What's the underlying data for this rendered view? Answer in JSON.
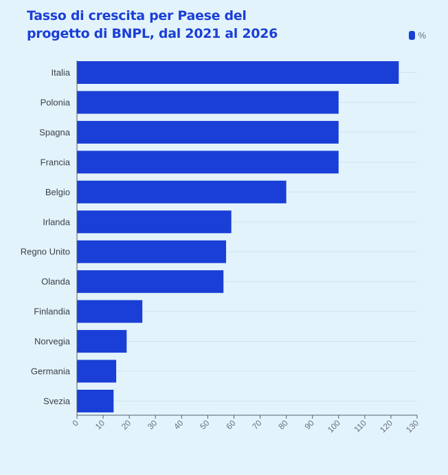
{
  "chart": {
    "title_line1": "Tasso di crescita per Paese del",
    "title_line2": "progetto di BNPL, dal 2021 al 2026",
    "legend_label": "%"
  },
  "colors": {
    "background": "#e3f3fc",
    "bar": "#1a3fd6",
    "title": "#1a3fd6",
    "grid": "#cfe3ee",
    "axis": "#555c66",
    "label": "#3a3f47",
    "tick": "#666e78"
  },
  "chart_data": {
    "type": "bar",
    "orientation": "horizontal",
    "categories": [
      "Italia",
      "Polonia",
      "Spagna",
      "Francia",
      "Belgio",
      "Irlanda",
      "Regno Unito",
      "Olanda",
      "Finlandia",
      "Norvegia",
      "Germania",
      "Svezia"
    ],
    "series": [
      {
        "name": "%",
        "values": [
          123,
          100,
          100,
          100,
          80,
          59,
          57,
          56,
          25,
          19,
          15,
          14
        ]
      }
    ],
    "title": "Tasso di crescita per Paese del progetto di BNPL, dal 2021 al 2026",
    "xlabel": "",
    "ylabel": "",
    "xlim": [
      0,
      130
    ],
    "xticks": [
      0,
      10,
      20,
      30,
      40,
      50,
      60,
      70,
      80,
      90,
      100,
      110,
      120,
      130
    ],
    "grid": true,
    "legend": "top-right"
  }
}
